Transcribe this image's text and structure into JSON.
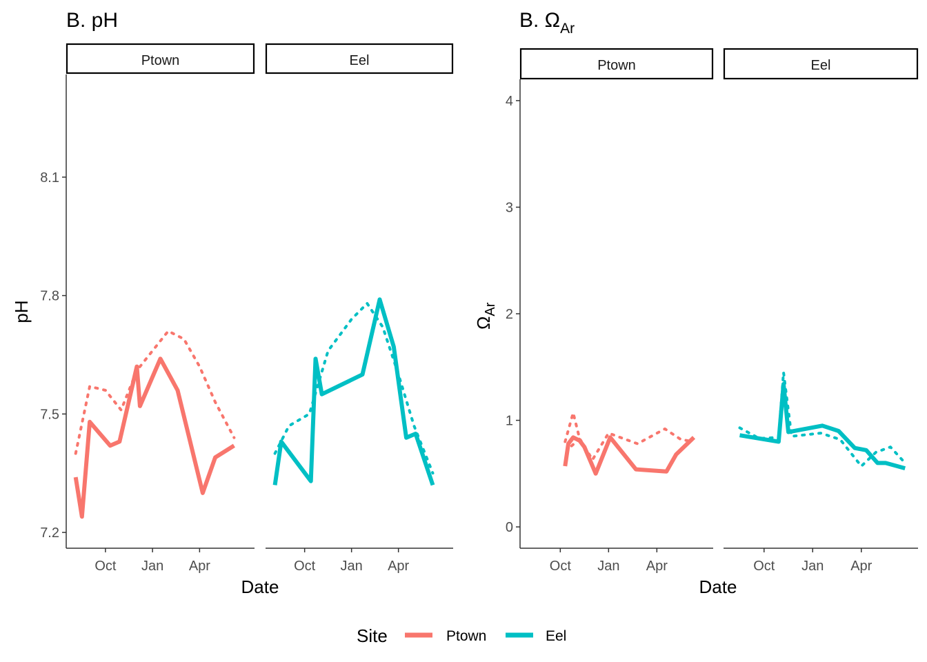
{
  "colors": {
    "Ptown": "#F8766D",
    "Eel": "#00BFC4",
    "axis": "#333333",
    "strip_border": "#000000"
  },
  "legend": {
    "title": "Site",
    "items": [
      "Ptown",
      "Eel"
    ]
  },
  "chart_data": [
    {
      "type": "line",
      "title": "B. pH",
      "xlabel": "Date",
      "ylabel": "pH",
      "ylim": [
        7.16,
        8.36
      ],
      "yticks": [
        7.2,
        7.5,
        7.8,
        8.1
      ],
      "ytick_labels": [
        "7.2",
        "7.5",
        "7.8",
        "8.1"
      ],
      "xlim": [
        0,
        12
      ],
      "xticks": [
        2.5,
        5.5,
        8.5
      ],
      "xtick_labels": [
        "Oct",
        "Jan",
        "Apr"
      ],
      "panels": [
        {
          "label": "Ptown",
          "series": [
            {
              "name": "Ptown",
              "style": "solid",
              "x": [
                0.6,
                1.0,
                1.5,
                2.8,
                3.4,
                4.5,
                4.7,
                6.0,
                7.1,
                8.7,
                9.5,
                10.7
              ],
              "y": [
                7.34,
                7.24,
                7.48,
                7.42,
                7.43,
                7.62,
                7.52,
                7.64,
                7.56,
                7.3,
                7.39,
                7.42
              ]
            },
            {
              "name": "Ptown",
              "style": "dotted",
              "x": [
                0.6,
                1.5,
                2.5,
                3.5,
                4.5,
                5.5,
                6.5,
                7.5,
                8.5,
                9.5,
                10.7
              ],
              "y": [
                7.4,
                7.57,
                7.56,
                7.51,
                7.61,
                7.66,
                7.71,
                7.69,
                7.62,
                7.53,
                7.44
              ]
            }
          ]
        },
        {
          "label": "Eel",
          "series": [
            {
              "name": "Eel",
              "style": "solid",
              "x": [
                0.6,
                1.0,
                2.9,
                3.2,
                3.6,
                6.2,
                7.3,
                8.2,
                9.0,
                9.6,
                10.7
              ],
              "y": [
                7.32,
                7.43,
                7.33,
                7.64,
                7.55,
                7.6,
                7.79,
                7.67,
                7.44,
                7.45,
                7.32
              ]
            },
            {
              "name": "Eel",
              "style": "dotted",
              "x": [
                0.6,
                1.5,
                2.8,
                4.0,
                5.5,
                6.5,
                7.5,
                8.5,
                9.5,
                10.7
              ],
              "y": [
                7.4,
                7.47,
                7.5,
                7.66,
                7.74,
                7.78,
                7.72,
                7.6,
                7.47,
                7.35
              ]
            }
          ]
        }
      ]
    },
    {
      "type": "line",
      "title": "B. Ω",
      "title_subscript": "Ar",
      "xlabel": "Date",
      "ylabel": "Ω",
      "ylabel_subscript": "Ar",
      "ylim": [
        -0.2,
        4.2
      ],
      "yticks": [
        0,
        1,
        2,
        3,
        4
      ],
      "ytick_labels": [
        "0",
        "1",
        "2",
        "3",
        "4"
      ],
      "xlim": [
        0,
        12
      ],
      "xticks": [
        2.5,
        5.5,
        8.5
      ],
      "xtick_labels": [
        "Oct",
        "Jan",
        "Apr"
      ],
      "panels": [
        {
          "label": "Ptown",
          "series": [
            {
              "name": "Ptown",
              "style": "solid",
              "x": [
                2.8,
                3.0,
                3.3,
                3.7,
                4.0,
                4.7,
                5.6,
                7.2,
                9.1,
                9.7,
                10.8
              ],
              "y": [
                0.57,
                0.78,
                0.84,
                0.81,
                0.75,
                0.5,
                0.84,
                0.54,
                0.52,
                0.68,
                0.84
              ]
            },
            {
              "name": "Ptown",
              "style": "dotted",
              "x": [
                2.8,
                3.3,
                3.7,
                4.5,
                5.5,
                7.3,
                9.0,
                10.0,
                10.8
              ],
              "y": [
                0.8,
                1.07,
                0.83,
                0.63,
                0.88,
                0.78,
                0.92,
                0.82,
                0.8
              ]
            },
            {
              "name": "Ptown",
              "style": "dotted",
              "x": [
                3.2,
                3.8
              ],
              "y": [
                0.76,
                0.84
              ]
            }
          ]
        },
        {
          "label": "Eel",
          "series": [
            {
              "name": "Eel",
              "style": "solid",
              "x": [
                1.0,
                3.4,
                3.7,
                4.0,
                6.1,
                7.1,
                8.1,
                8.8,
                9.5,
                10.0,
                11.2
              ],
              "y": [
                0.86,
                0.8,
                1.34,
                0.89,
                0.95,
                0.9,
                0.74,
                0.72,
                0.6,
                0.6,
                0.55
              ]
            },
            {
              "name": "Eel",
              "style": "dotted",
              "x": [
                1.0,
                2.2,
                3.4,
                3.7,
                4.2,
                6.0,
                7.2,
                8.5,
                9.4,
                10.3,
                11.2
              ],
              "y": [
                0.93,
                0.83,
                0.84,
                1.45,
                0.85,
                0.88,
                0.82,
                0.57,
                0.7,
                0.75,
                0.6
              ]
            }
          ]
        }
      ]
    }
  ]
}
